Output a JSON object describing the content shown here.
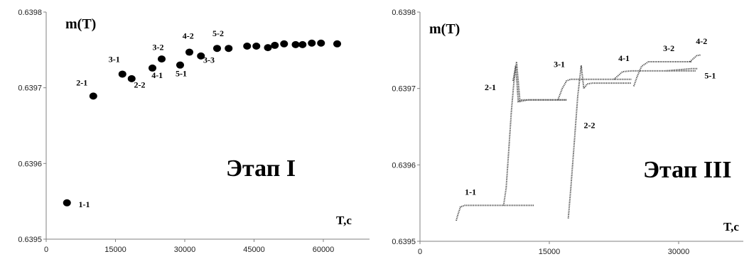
{
  "chart_data": [
    {
      "type": "scatter",
      "ylabel": "m(T)",
      "xlabel": "T,c",
      "stage_label": "Этап I",
      "xlim": [
        0,
        70000
      ],
      "ylim": [
        0.6395,
        0.6398
      ],
      "xticks": [
        "0",
        "15000",
        "30000",
        "45000",
        "60000"
      ],
      "yticks": [
        "0.6395",
        "0.6396",
        "0.6397",
        "0.6398"
      ],
      "grid": false,
      "points": [
        {
          "x": 4500,
          "y": 0.639548
        },
        {
          "x": 10200,
          "y": 0.639689
        },
        {
          "x": 16500,
          "y": 0.639718
        },
        {
          "x": 18500,
          "y": 0.639712
        },
        {
          "x": 23000,
          "y": 0.639726
        },
        {
          "x": 25000,
          "y": 0.639738
        },
        {
          "x": 29000,
          "y": 0.63973
        },
        {
          "x": 31000,
          "y": 0.639747
        },
        {
          "x": 33500,
          "y": 0.639742
        },
        {
          "x": 37000,
          "y": 0.639752
        },
        {
          "x": 39500,
          "y": 0.639752
        },
        {
          "x": 43500,
          "y": 0.639755
        },
        {
          "x": 45500,
          "y": 0.639755
        },
        {
          "x": 48000,
          "y": 0.639753
        },
        {
          "x": 49500,
          "y": 0.639756
        },
        {
          "x": 51500,
          "y": 0.639758
        },
        {
          "x": 54000,
          "y": 0.639757
        },
        {
          "x": 55500,
          "y": 0.639757
        },
        {
          "x": 57500,
          "y": 0.639759
        },
        {
          "x": 59500,
          "y": 0.639759
        },
        {
          "x": 63000,
          "y": 0.639758
        }
      ],
      "annotations": [
        {
          "text": "1-1",
          "x": 7000,
          "y": 0.639542
        },
        {
          "text": "2-1",
          "x": 6500,
          "y": 0.639703
        },
        {
          "text": "3-1",
          "x": 13500,
          "y": 0.639734
        },
        {
          "text": "2-2",
          "x": 19000,
          "y": 0.6397
        },
        {
          "text": "3-2",
          "x": 23000,
          "y": 0.63975
        },
        {
          "text": "4-1",
          "x": 22800,
          "y": 0.639713
        },
        {
          "text": "5-1",
          "x": 28000,
          "y": 0.639715
        },
        {
          "text": "4-2",
          "x": 29500,
          "y": 0.639765
        },
        {
          "text": "3-3",
          "x": 34000,
          "y": 0.639733
        },
        {
          "text": "5-2",
          "x": 36000,
          "y": 0.639768
        }
      ]
    },
    {
      "type": "line",
      "ylabel": "m(T)",
      "xlabel": "T,c",
      "stage_label": "Этап III",
      "xlim": [
        0,
        37500
      ],
      "ylim": [
        0.6395,
        0.6398
      ],
      "xticks": [
        "0",
        "15000",
        "30000"
      ],
      "yticks": [
        "0.6395",
        "0.6396",
        "0.6397",
        "0.6398"
      ],
      "grid": false,
      "series": [
        {
          "x": [
            4200,
            4400,
            4700,
            5200,
            6500,
            8500,
            10000,
            11500,
            13200
          ],
          "y": [
            0.639527,
            0.639535,
            0.639545,
            0.639547,
            0.639547,
            0.639547,
            0.639547,
            0.639547,
            0.639547
          ]
        },
        {
          "x": [
            9700,
            10000,
            10300,
            10600,
            10900,
            11200,
            11600,
            12500,
            14000,
            15500,
            17000
          ],
          "y": [
            0.639547,
            0.63957,
            0.63962,
            0.63967,
            0.63971,
            0.639735,
            0.639683,
            0.639685,
            0.639685,
            0.639685,
            0.639685
          ]
        },
        {
          "x": [
            10800,
            11100,
            11400,
            11800,
            13000,
            14500,
            16000,
            17000
          ],
          "y": [
            0.63971,
            0.63973,
            0.639683,
            0.639685,
            0.639685,
            0.639685,
            0.639685,
            0.639685
          ]
        },
        {
          "x": [
            16000,
            16500,
            17000,
            17500,
            18500,
            20000,
            21500,
            23000,
            24500
          ],
          "y": [
            0.639685,
            0.6397,
            0.63971,
            0.639712,
            0.639712,
            0.639712,
            0.639712,
            0.639712,
            0.639712
          ]
        },
        {
          "x": [
            17200,
            17500,
            17900,
            18300,
            18700,
            19000,
            19400,
            20000,
            21500,
            23000,
            24500
          ],
          "y": [
            0.63953,
            0.63957,
            0.63963,
            0.63969,
            0.63973,
            0.6397,
            0.639706,
            0.639707,
            0.639707,
            0.639707,
            0.639707
          ]
        },
        {
          "x": [
            22500,
            23000,
            23500,
            24500,
            26000,
            28000,
            30000,
            32000
          ],
          "y": [
            0.639712,
            0.639717,
            0.639722,
            0.639723,
            0.639723,
            0.639723,
            0.639723,
            0.639723
          ]
        },
        {
          "x": [
            24800,
            25200,
            25700,
            26500,
            28000,
            29500,
            31500
          ],
          "y": [
            0.639703,
            0.639716,
            0.639729,
            0.639735,
            0.639735,
            0.639735,
            0.639735
          ]
        },
        {
          "x": [
            28500,
            29500,
            30500,
            31500,
            32200
          ],
          "y": [
            0.639723,
            0.639724,
            0.639725,
            0.639726,
            0.639726
          ]
        },
        {
          "x": [
            31300,
            31700,
            32100,
            32600
          ],
          "y": [
            0.639735,
            0.639739,
            0.639743,
            0.639744
          ]
        }
      ],
      "annotations": [
        {
          "text": "1-1",
          "x": 5200,
          "y": 0.639561
        },
        {
          "text": "2-1",
          "x": 7500,
          "y": 0.639698
        },
        {
          "text": "3-1",
          "x": 15500,
          "y": 0.639728
        },
        {
          "text": "2-2",
          "x": 19000,
          "y": 0.639648
        },
        {
          "text": "4-1",
          "x": 23000,
          "y": 0.639736
        },
        {
          "text": "3-2",
          "x": 28200,
          "y": 0.639749
        },
        {
          "text": "4-2",
          "x": 32000,
          "y": 0.639758
        },
        {
          "text": "5-1",
          "x": 33000,
          "y": 0.639713
        }
      ]
    }
  ]
}
